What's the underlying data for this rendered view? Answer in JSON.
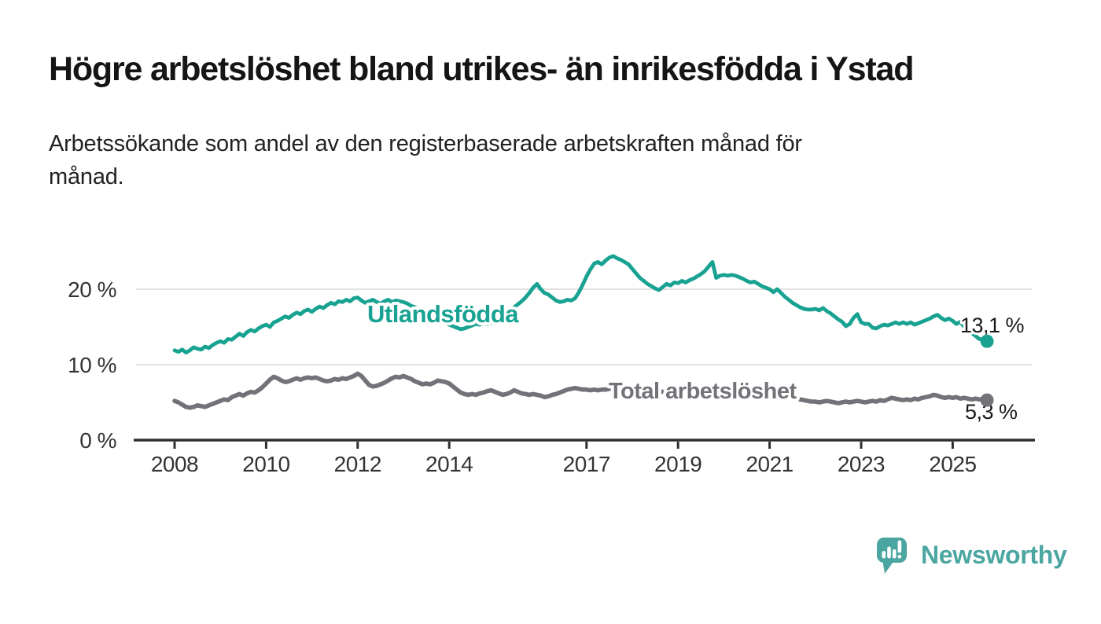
{
  "header": {
    "title": "Högre arbetslöshet bland utrikes- än inrikesfödda i Ystad",
    "subtitle_line1": "Arbetssökande som andel av den registerbaserade arbetskraften månad för",
    "subtitle_line2": "månad."
  },
  "chart_data": {
    "type": "line",
    "title": "Högre arbetslöshet bland utrikes- än inrikesfödda i Ystad",
    "subtitle": "Arbetssökande som andel av den registerbaserade arbetskraften månad för månad.",
    "x_start": "2008-01",
    "x_interval": "monthly",
    "x_end": "2025-10",
    "x_tick_years": [
      2008,
      2010,
      2012,
      2014,
      2017,
      2019,
      2021,
      2023,
      2025
    ],
    "y_ticks": [
      0,
      10,
      20
    ],
    "y_tick_labels": [
      "0 %",
      "10 %",
      "20 %"
    ],
    "ylim": [
      0,
      26
    ],
    "grid": "horizontal",
    "legend_position": "inline-labels",
    "series": [
      {
        "name": "Utlandsfödda",
        "color": "#18a292",
        "end_label": "13,1 %",
        "end_value": 13.1,
        "values": [
          11.9,
          11.7,
          12.0,
          11.6,
          11.9,
          12.3,
          12.1,
          12.0,
          12.4,
          12.2,
          12.6,
          12.9,
          13.1,
          12.9,
          13.4,
          13.3,
          13.7,
          14.1,
          13.8,
          14.3,
          14.6,
          14.4,
          14.8,
          15.1,
          15.3,
          15.0,
          15.6,
          15.8,
          16.1,
          16.4,
          16.2,
          16.6,
          16.9,
          16.7,
          17.1,
          17.3,
          17.0,
          17.4,
          17.7,
          17.5,
          17.9,
          18.2,
          18.0,
          18.4,
          18.3,
          18.6,
          18.4,
          18.8,
          18.9,
          18.5,
          18.2,
          18.4,
          18.6,
          18.3,
          18.1,
          18.4,
          18.6,
          18.3,
          18.5,
          18.4,
          18.3,
          18.1,
          17.8,
          17.6,
          17.3,
          17.1,
          16.8,
          16.5,
          16.2,
          15.9,
          15.7,
          15.5,
          15.3,
          15.1,
          14.9,
          14.7,
          14.8,
          15.0,
          15.2,
          15.4,
          15.3,
          15.5,
          15.4,
          15.5,
          15.7,
          16.0,
          16.4,
          16.8,
          17.2,
          17.6,
          18.0,
          18.4,
          18.9,
          19.5,
          20.2,
          20.7,
          20.0,
          19.5,
          19.3,
          18.9,
          18.5,
          18.3,
          18.4,
          18.6,
          18.5,
          18.8,
          19.6,
          20.6,
          21.7,
          22.6,
          23.4,
          23.6,
          23.3,
          23.8,
          24.2,
          24.4,
          24.1,
          23.9,
          23.6,
          23.3,
          22.7,
          22.1,
          21.5,
          21.1,
          20.7,
          20.4,
          20.1,
          19.9,
          20.3,
          20.7,
          20.5,
          20.9,
          20.8,
          21.1,
          20.9,
          21.2,
          21.4,
          21.7,
          22.0,
          22.4,
          23.0,
          23.6,
          21.5,
          21.8,
          21.9,
          21.8,
          21.9,
          21.8,
          21.6,
          21.4,
          21.1,
          20.9,
          21.0,
          20.7,
          20.4,
          20.2,
          20.0,
          19.6,
          20.0,
          19.5,
          19.0,
          18.6,
          18.2,
          17.9,
          17.6,
          17.4,
          17.3,
          17.3,
          17.4,
          17.2,
          17.5,
          17.1,
          16.8,
          16.4,
          16.0,
          15.7,
          15.1,
          15.4,
          16.2,
          16.7,
          15.6,
          15.4,
          15.4,
          14.9,
          14.8,
          15.1,
          15.3,
          15.2,
          15.4,
          15.6,
          15.4,
          15.6,
          15.4,
          15.6,
          15.3,
          15.5,
          15.7,
          15.9,
          16.1,
          16.4,
          16.6,
          16.2,
          15.9,
          16.1,
          15.8,
          15.4,
          15.7,
          15.0,
          14.6,
          14.2,
          13.8,
          13.4,
          13.3,
          13.1
        ]
      },
      {
        "name": "Total arbetslöshet",
        "color": "#737278",
        "end_label": "5,3 %",
        "end_value": 5.3,
        "values": [
          5.2,
          5.0,
          4.7,
          4.4,
          4.3,
          4.4,
          4.6,
          4.5,
          4.4,
          4.6,
          4.8,
          5.0,
          5.2,
          5.4,
          5.3,
          5.7,
          5.9,
          6.1,
          5.9,
          6.2,
          6.4,
          6.3,
          6.6,
          7.0,
          7.5,
          8.0,
          8.4,
          8.2,
          7.9,
          7.7,
          7.8,
          8.0,
          8.2,
          8.0,
          8.2,
          8.3,
          8.2,
          8.3,
          8.1,
          7.9,
          7.8,
          7.9,
          8.1,
          8.0,
          8.2,
          8.1,
          8.3,
          8.5,
          8.8,
          8.5,
          7.9,
          7.3,
          7.1,
          7.2,
          7.4,
          7.6,
          7.9,
          8.2,
          8.4,
          8.3,
          8.5,
          8.3,
          8.1,
          7.8,
          7.6,
          7.4,
          7.5,
          7.4,
          7.6,
          7.9,
          7.8,
          7.7,
          7.5,
          7.1,
          6.7,
          6.3,
          6.1,
          6.0,
          6.1,
          6.0,
          6.2,
          6.3,
          6.5,
          6.6,
          6.4,
          6.2,
          6.0,
          6.1,
          6.3,
          6.6,
          6.4,
          6.2,
          6.1,
          6.0,
          6.1,
          6.0,
          5.9,
          5.7,
          5.8,
          6.0,
          6.1,
          6.3,
          6.5,
          6.7,
          6.8,
          6.9,
          6.8,
          6.7,
          6.7,
          6.6,
          6.7,
          6.6,
          6.7,
          6.7,
          6.8,
          6.9,
          7.0,
          7.0,
          7.1,
          7.0,
          7.0,
          7.1,
          7.0,
          6.9,
          6.8,
          6.7,
          6.6,
          6.5,
          6.4,
          6.4,
          6.3,
          6.3,
          6.2,
          6.2,
          6.1,
          6.1,
          6.0,
          6.1,
          6.2,
          6.3,
          6.4,
          6.6,
          6.5,
          6.4,
          6.5,
          6.6,
          6.8,
          7.0,
          7.1,
          7.0,
          6.9,
          6.8,
          6.6,
          6.5,
          6.4,
          6.3,
          6.2,
          6.1,
          6.0,
          5.9,
          5.8,
          5.7,
          5.6,
          5.5,
          5.4,
          5.3,
          5.2,
          5.1,
          5.1,
          5.0,
          5.1,
          5.2,
          5.1,
          5.0,
          4.9,
          5.0,
          5.1,
          5.0,
          5.1,
          5.2,
          5.1,
          5.0,
          5.1,
          5.2,
          5.1,
          5.3,
          5.2,
          5.4,
          5.6,
          5.5,
          5.4,
          5.3,
          5.4,
          5.3,
          5.5,
          5.4,
          5.6,
          5.7,
          5.8,
          6.0,
          5.9,
          5.7,
          5.6,
          5.7,
          5.6,
          5.7,
          5.5,
          5.6,
          5.5,
          5.4,
          5.5,
          5.4,
          5.4,
          5.3
        ]
      }
    ]
  },
  "branding": {
    "logo_text": "Newsworthy",
    "logo_color": "#4ba6a1",
    "logo_icon": "speech-bubble-bar-chart-icon"
  },
  "colors": {
    "background": "#ffffff",
    "title": "#151515",
    "subtitle": "#222222",
    "axis": "#2f2f2f",
    "tick_text": "#333333",
    "gridline": "#d9d9d9",
    "value_label": "#1a1a1a",
    "halo": "#ffffff"
  }
}
